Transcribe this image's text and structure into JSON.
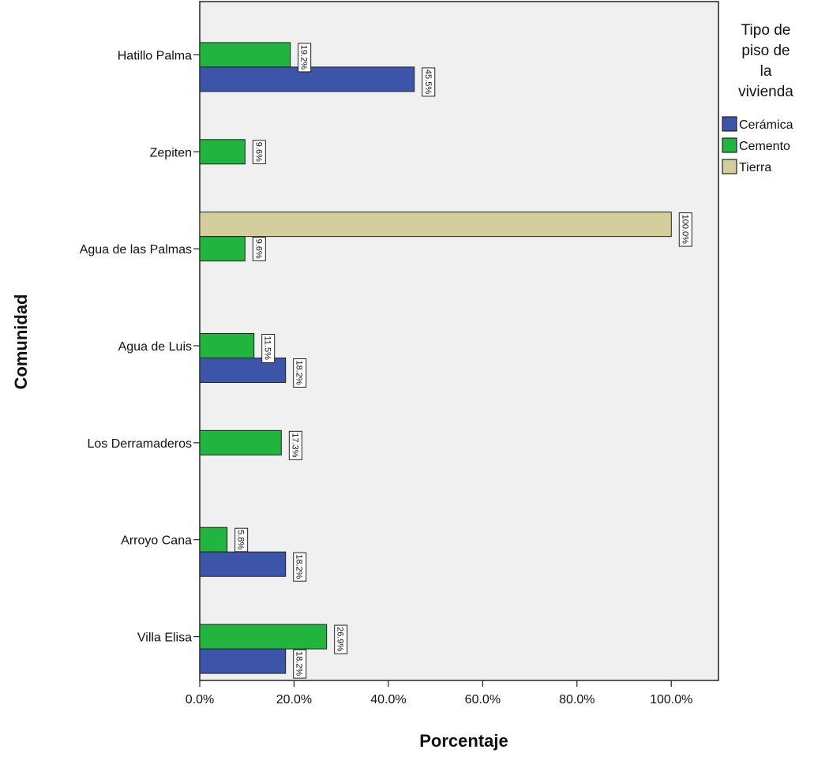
{
  "chart_data": {
    "type": "bar",
    "orientation": "horizontal",
    "categories": [
      "Hatillo Palma",
      "Zepiten",
      "Agua de las Palmas",
      "Agua de Luis",
      "Los Derramaderos",
      "Arroyo Cana",
      "Villa Elisa"
    ],
    "series": [
      {
        "name": "Tierra",
        "color": "#d3ce9c",
        "values": [
          null,
          null,
          100.0,
          null,
          null,
          null,
          null
        ],
        "labels": [
          null,
          null,
          "100.0%",
          null,
          null,
          null,
          null
        ]
      },
      {
        "name": "Cemento",
        "color": "#21b43f",
        "values": [
          19.2,
          9.6,
          9.6,
          11.5,
          17.3,
          5.8,
          26.9
        ],
        "labels": [
          "19.2%",
          "9.6%",
          "9.6%",
          "11.5%",
          "17.3%",
          "5.8%",
          "26.9%"
        ]
      },
      {
        "name": "Cerámica",
        "color": "#3d55a8",
        "values": [
          45.5,
          null,
          null,
          18.2,
          null,
          18.2,
          18.2
        ],
        "labels": [
          "45.5%",
          null,
          null,
          "18.2%",
          null,
          "18.2%",
          "18.2%"
        ]
      }
    ],
    "xlabel": "Porcentaje",
    "ylabel": "Comunidad",
    "xlim": [
      0,
      110
    ],
    "xticks": [
      0,
      20,
      40,
      60,
      80,
      100
    ],
    "xtick_labels": [
      "0.0%",
      "20.0%",
      "40.0%",
      "60.0%",
      "80.0%",
      "100.0%"
    ],
    "grid": false,
    "legend": {
      "title_lines": [
        "Tipo de",
        "piso de",
        "la",
        "vivienda"
      ],
      "placement": "right",
      "entries": [
        {
          "name": "Cerámica",
          "color": "#3d55a8"
        },
        {
          "name": "Cemento",
          "color": "#21b43f"
        },
        {
          "name": "Tierra",
          "color": "#d3ce9c"
        }
      ]
    }
  }
}
